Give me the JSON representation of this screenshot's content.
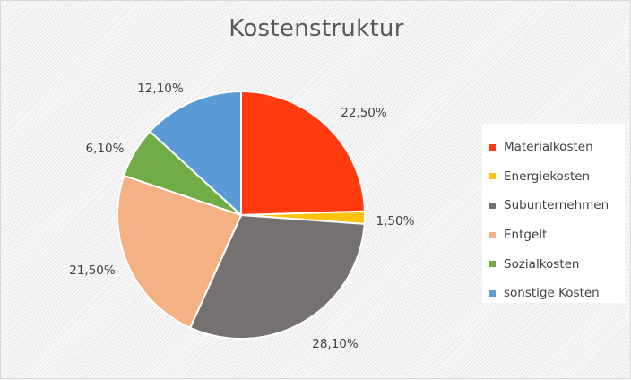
{
  "chart_data": {
    "type": "pie",
    "title": "Kostenstruktur",
    "legend_position": "right",
    "series": [
      {
        "values": [
          22.5,
          1.5,
          28.1,
          21.5,
          6.1,
          12.1
        ],
        "value_labels": [
          "22,50%",
          "1,50%",
          "28,10%",
          "21,50%",
          "6,10%",
          "12,10%"
        ]
      }
    ],
    "categories": [
      "Materialkosten",
      "Energiekosten",
      "Subunternehmen",
      "Entgelt",
      "Sozialkosten",
      "sonstige Kosten"
    ],
    "colors": [
      "#ff3b0f",
      "#ffc20e",
      "#767171",
      "#f4b183",
      "#70ad47",
      "#5b9bd5"
    ]
  }
}
